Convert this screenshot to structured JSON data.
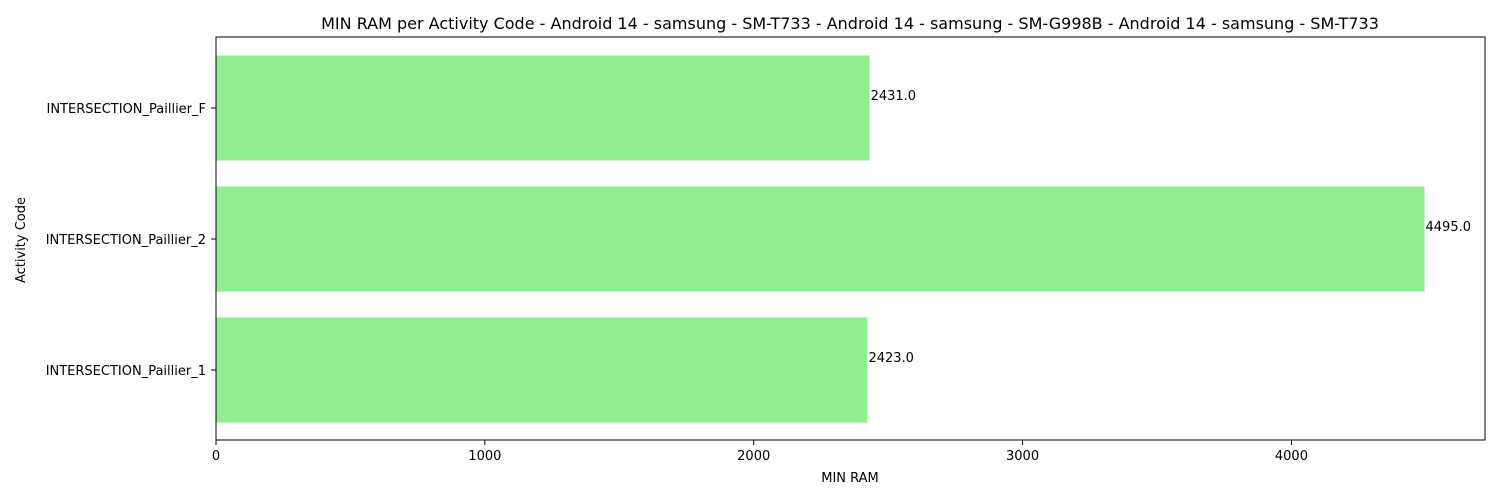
{
  "chart_data": {
    "type": "bar",
    "orientation": "horizontal",
    "title": "MIN RAM per Activity Code - Android 14 - samsung - SM-T733 - Android 14 - samsung - SM-G998B - Android 14 - samsung - SM-T733",
    "xlabel": "MIN RAM",
    "ylabel": "Activity Code",
    "categories": [
      "INTERSECTION_Paillier_1",
      "INTERSECTION_Paillier_2",
      "INTERSECTION_Paillier_F"
    ],
    "values": [
      2423.0,
      4495.0,
      2431.0
    ],
    "value_labels": [
      "2423.0",
      "4495.0",
      "2431.0"
    ],
    "xlim": [
      0,
      4720
    ],
    "xticks": [
      0,
      1000,
      2000,
      3000,
      4000
    ],
    "xtick_labels": [
      "0",
      "1000",
      "2000",
      "3000",
      "4000"
    ],
    "bar_color": "#90ee90",
    "grid": false,
    "legend": false
  }
}
